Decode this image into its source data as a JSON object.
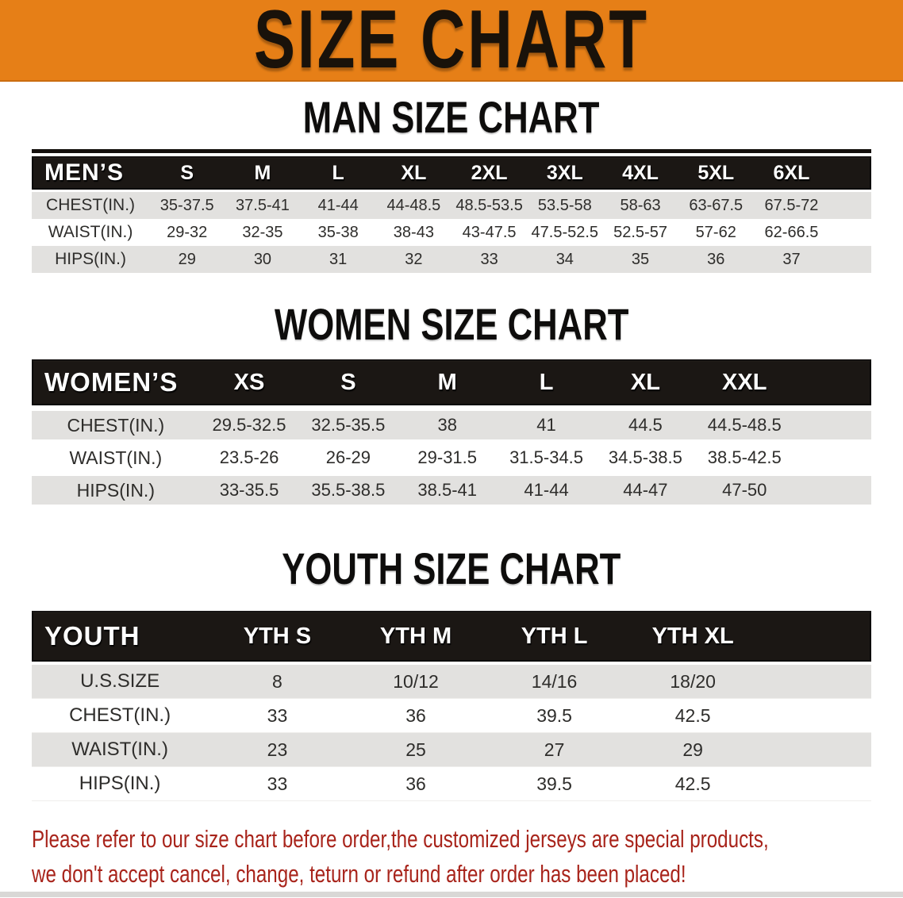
{
  "colors": {
    "banner_orange": "#e67f17",
    "bar_black": "#1b1714",
    "row_gray": "#e2e1df",
    "note_red": "#a8241b"
  },
  "banner": {
    "title": "SIZE CHART"
  },
  "man": {
    "heading": "MAN SIZE CHART",
    "label": "MEN’S",
    "sizes": [
      "S",
      "M",
      "L",
      "XL",
      "2XL",
      "3XL",
      "4XL",
      "5XL",
      "6XL"
    ],
    "rows": [
      {
        "label": "CHEST(IN.)",
        "values": [
          "35-37.5",
          "37.5-41",
          "41-44",
          "44-48.5",
          "48.5-53.5",
          "53.5-58",
          "58-63",
          "63-67.5",
          "67.5-72"
        ]
      },
      {
        "label": "WAIST(IN.)",
        "values": [
          "29-32",
          "32-35",
          "35-38",
          "38-43",
          "43-47.5",
          "47.5-52.5",
          "52.5-57",
          "57-62",
          "62-66.5"
        ]
      },
      {
        "label": "HIPS(IN.)",
        "values": [
          "29",
          "30",
          "31",
          "32",
          "33",
          "34",
          "35",
          "36",
          "37"
        ]
      }
    ]
  },
  "women": {
    "heading": "WOMEN SIZE CHART",
    "label": "WOMEN’S",
    "sizes": [
      "XS",
      "S",
      "M",
      "L",
      "XL",
      "XXL"
    ],
    "rows": [
      {
        "label": "CHEST(IN.)",
        "values": [
          "29.5-32.5",
          "32.5-35.5",
          "38",
          "41",
          "44.5",
          "44.5-48.5"
        ]
      },
      {
        "label": "WAIST(IN.)",
        "values": [
          "23.5-26",
          "26-29",
          "29-31.5",
          "31.5-34.5",
          "34.5-38.5",
          "38.5-42.5"
        ]
      },
      {
        "label": "HIPS(IN.)",
        "values": [
          "33-35.5",
          "35.5-38.5",
          "38.5-41",
          "41-44",
          "44-47",
          "47-50"
        ]
      }
    ]
  },
  "youth": {
    "heading": "YOUTH SIZE CHART",
    "label": "YOUTH",
    "sizes": [
      "YTH S",
      "YTH M",
      "YTH L",
      "YTH XL"
    ],
    "rows": [
      {
        "label": "U.S.SIZE",
        "values": [
          "8",
          "10/12",
          "14/16",
          "18/20"
        ]
      },
      {
        "label": "CHEST(IN.)",
        "values": [
          "33",
          "36",
          "39.5",
          "42.5"
        ]
      },
      {
        "label": "WAIST(IN.)",
        "values": [
          "23",
          "25",
          "27",
          "29"
        ]
      },
      {
        "label": "HIPS(IN.)",
        "values": [
          "33",
          "36",
          "39.5",
          "42.5"
        ]
      }
    ]
  },
  "note": {
    "line1": "Please refer to our size chart before order,the customized jerseys are special products,",
    "line2": "we don't accept cancel, change, teturn or refund after order has been placed!"
  }
}
